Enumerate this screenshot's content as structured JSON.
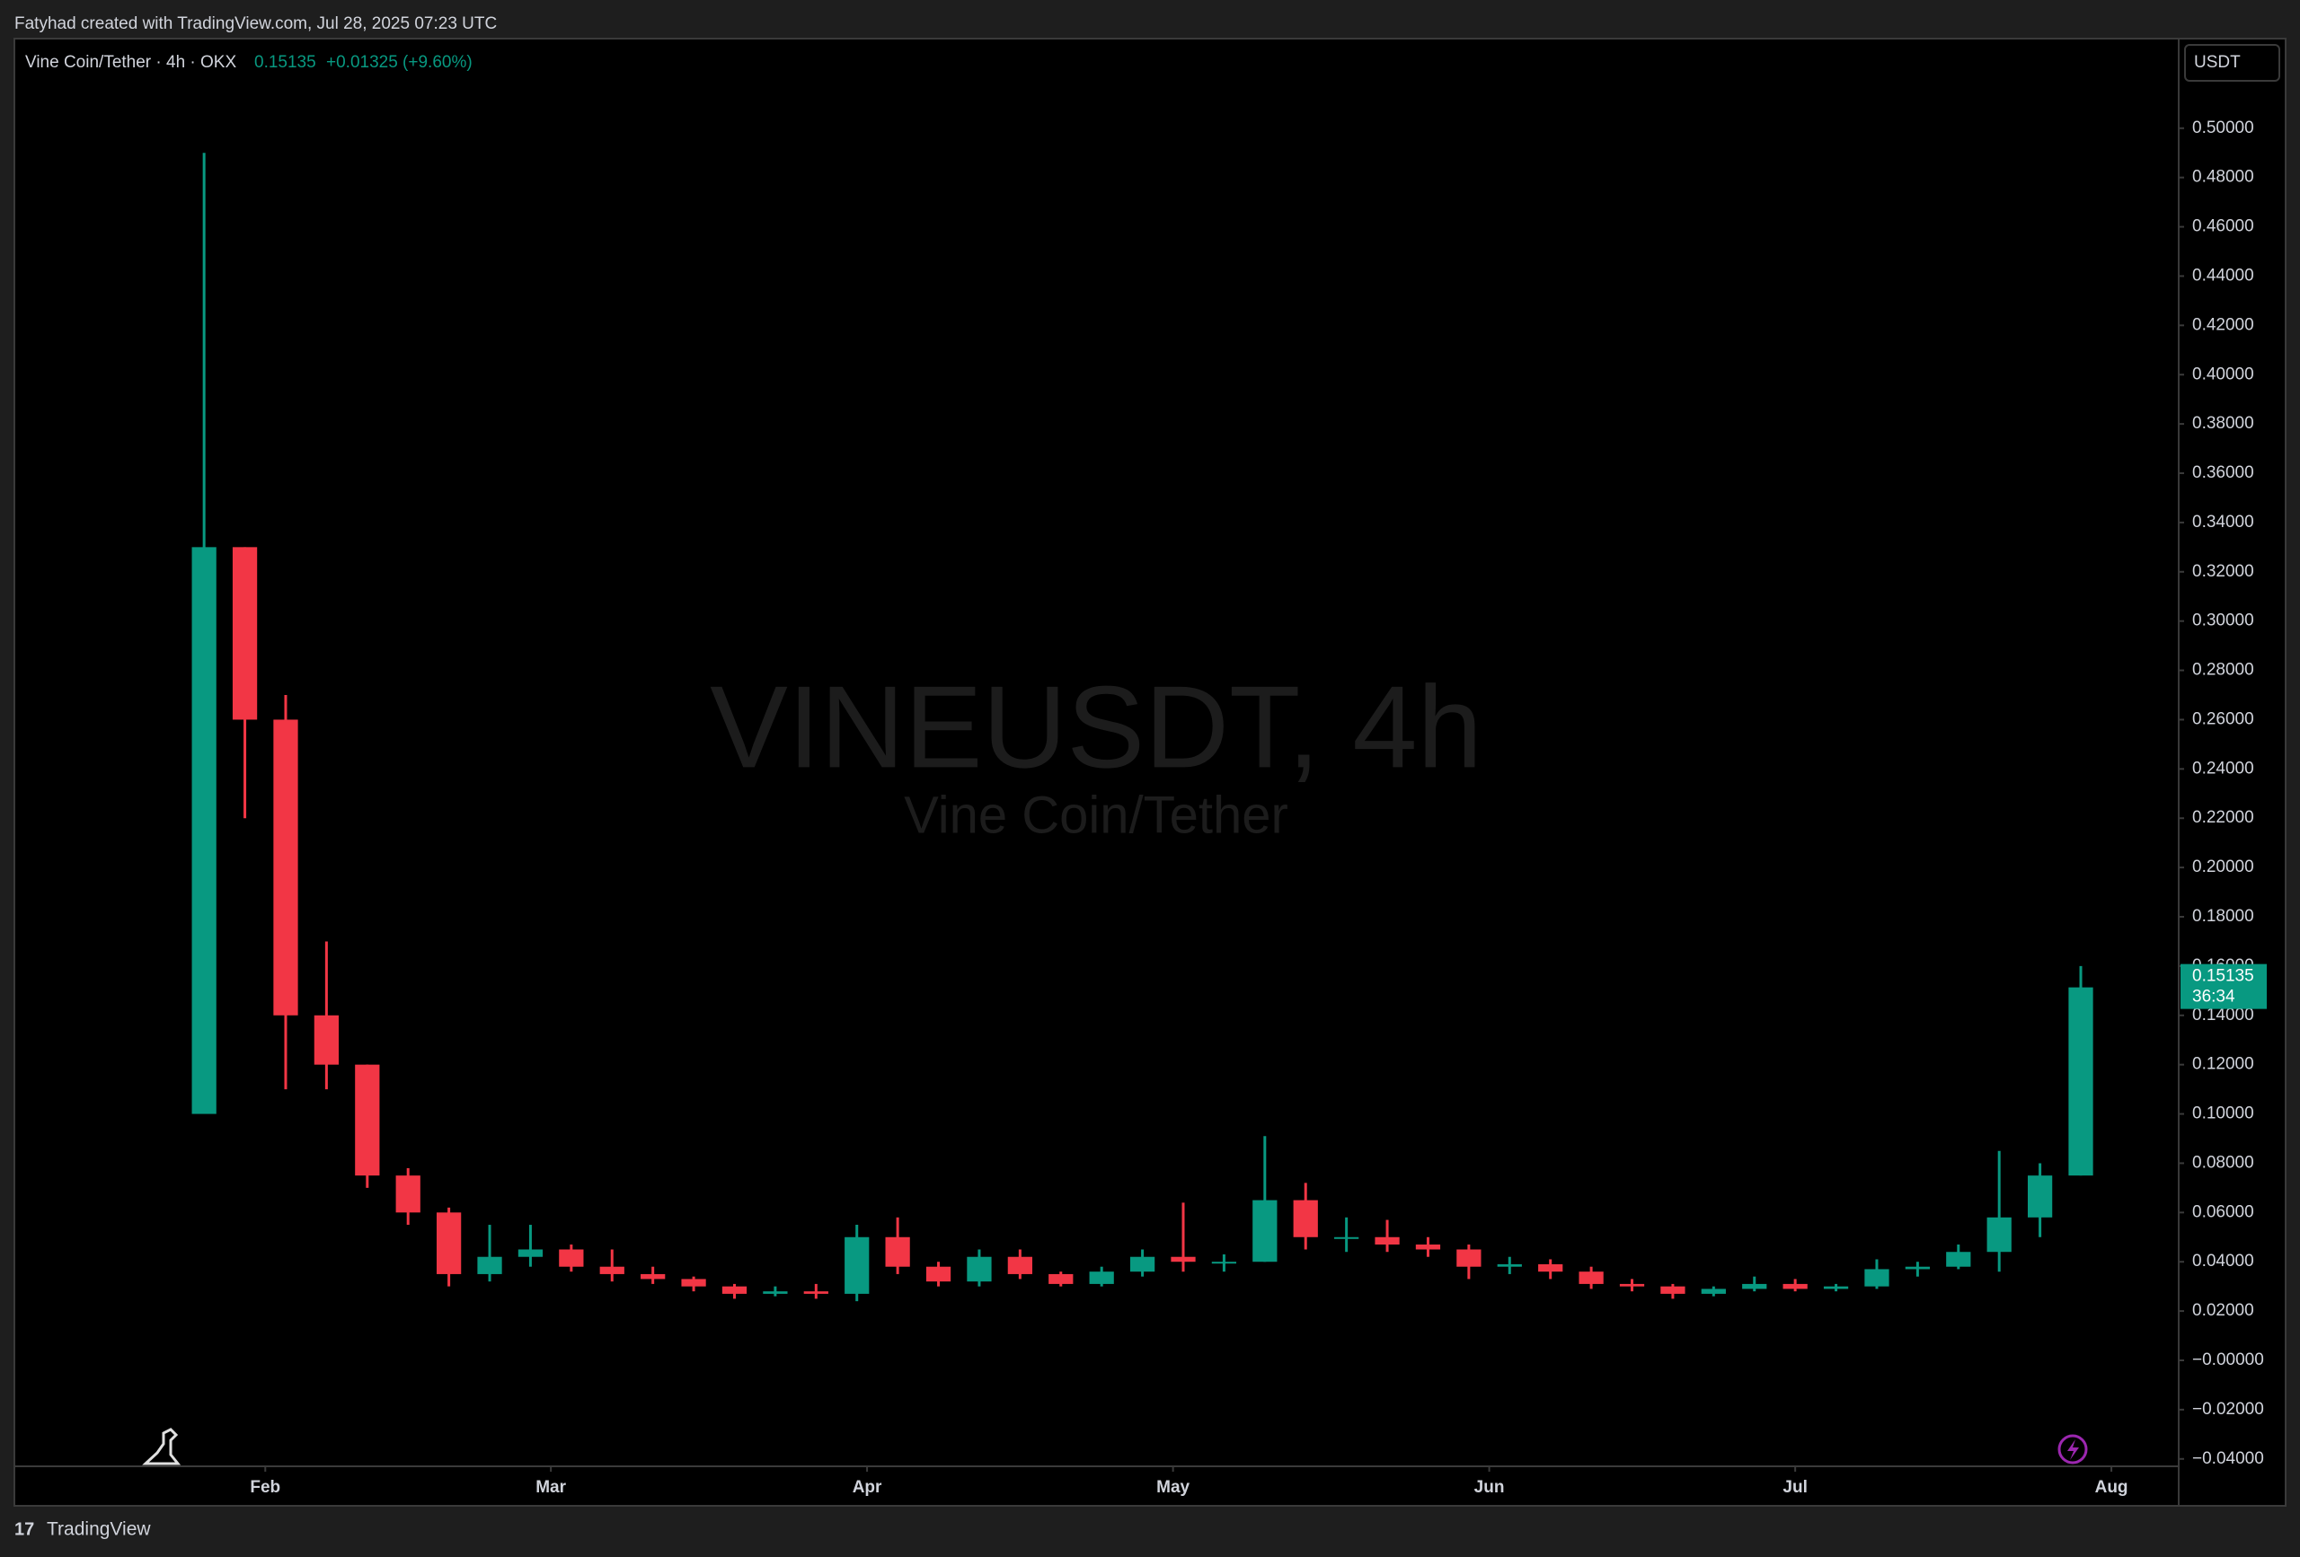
{
  "chart_data": {
    "type": "candlestick",
    "attribution": "Fatyhad created with TradingView.com, Jul 28, 2025 07:23 UTC",
    "symbol_title": "Vine Coin/Tether · 4h · OKX",
    "last_price": 0.15135,
    "change": "+0.01325 (+9.60%)",
    "currency": "USDT",
    "watermark": "VINEUSDT, 4h",
    "watermark_subtitle": "Vine Coin/Tether",
    "countdown": "36:34",
    "brand": "TradingView",
    "up_color": "#089981",
    "down_color": "#f23645",
    "xlim": [
      6.4,
      218.6
    ],
    "xticks": [
      {
        "value": 31,
        "label": "Feb"
      },
      {
        "value": 59,
        "label": "Mar"
      },
      {
        "value": 90,
        "label": "Apr"
      },
      {
        "value": 120,
        "label": "May"
      },
      {
        "value": 151,
        "label": "Jun"
      },
      {
        "value": 181,
        "label": "Jul"
      },
      {
        "value": 212,
        "label": "Aug"
      }
    ],
    "ylim": [
      -0.043,
      0.536
    ],
    "yticks": [
      {
        "value": 0.5,
        "label": "0.50000"
      },
      {
        "value": 0.48,
        "label": "0.48000"
      },
      {
        "value": 0.46,
        "label": "0.46000"
      },
      {
        "value": 0.44,
        "label": "0.44000"
      },
      {
        "value": 0.42,
        "label": "0.42000"
      },
      {
        "value": 0.4,
        "label": "0.40000"
      },
      {
        "value": 0.38,
        "label": "0.38000"
      },
      {
        "value": 0.36,
        "label": "0.36000"
      },
      {
        "value": 0.34,
        "label": "0.34000"
      },
      {
        "value": 0.32,
        "label": "0.32000"
      },
      {
        "value": 0.3,
        "label": "0.30000"
      },
      {
        "value": 0.28,
        "label": "0.28000"
      },
      {
        "value": 0.26,
        "label": "0.26000"
      },
      {
        "value": 0.24,
        "label": "0.24000"
      },
      {
        "value": 0.22,
        "label": "0.22000"
      },
      {
        "value": 0.2,
        "label": "0.20000"
      },
      {
        "value": 0.18,
        "label": "0.18000"
      },
      {
        "value": 0.16,
        "label": "0.16000"
      },
      {
        "value": 0.14,
        "label": "0.14000"
      },
      {
        "value": 0.12,
        "label": "0.12000"
      },
      {
        "value": 0.1,
        "label": "0.10000"
      },
      {
        "value": 0.08,
        "label": "0.08000"
      },
      {
        "value": 0.06,
        "label": "0.06000"
      },
      {
        "value": 0.04,
        "label": "0.04000"
      },
      {
        "value": 0.02,
        "label": "0.02000"
      },
      {
        "value": 0,
        "label": "−0.00000"
      },
      {
        "value": -0.02,
        "label": "−0.02000"
      },
      {
        "value": -0.04,
        "label": "−0.04000"
      }
    ],
    "ohlc": {
      "x": [
        25,
        29,
        33,
        37,
        41,
        45,
        49,
        53,
        57,
        61,
        65,
        69,
        73,
        77,
        81,
        85,
        89,
        93,
        97,
        101,
        105,
        109,
        113,
        117,
        121,
        125,
        129,
        133,
        137,
        141,
        145,
        149,
        153,
        157,
        161,
        165,
        169,
        173,
        177,
        181,
        185,
        189,
        193,
        197,
        201,
        205,
        209
      ],
      "open": [
        0.1,
        0.33,
        0.26,
        0.14,
        0.12,
        0.075,
        0.06,
        0.035,
        0.042,
        0.045,
        0.038,
        0.035,
        0.033,
        0.03,
        0.027,
        0.028,
        0.027,
        0.05,
        0.038,
        0.032,
        0.042,
        0.035,
        0.031,
        0.036,
        0.042,
        0.04,
        0.04,
        0.065,
        0.05,
        0.05,
        0.047,
        0.045,
        0.038,
        0.039,
        0.036,
        0.031,
        0.03,
        0.027,
        0.029,
        0.031,
        0.029,
        0.03,
        0.037,
        0.038,
        0.044,
        0.058,
        0.075
      ],
      "high": [
        0.49,
        0.33,
        0.27,
        0.17,
        0.12,
        0.078,
        0.062,
        0.055,
        0.055,
        0.047,
        0.045,
        0.038,
        0.034,
        0.031,
        0.03,
        0.031,
        0.055,
        0.058,
        0.04,
        0.045,
        0.045,
        0.036,
        0.038,
        0.045,
        0.064,
        0.043,
        0.091,
        0.072,
        0.058,
        0.057,
        0.05,
        0.047,
        0.042,
        0.041,
        0.038,
        0.033,
        0.031,
        0.03,
        0.034,
        0.033,
        0.031,
        0.041,
        0.04,
        0.047,
        0.085,
        0.08,
        0.16
      ],
      "low": [
        0.1,
        0.22,
        0.11,
        0.11,
        0.07,
        0.055,
        0.03,
        0.032,
        0.038,
        0.036,
        0.032,
        0.031,
        0.028,
        0.025,
        0.026,
        0.025,
        0.024,
        0.035,
        0.03,
        0.03,
        0.033,
        0.03,
        0.03,
        0.034,
        0.036,
        0.036,
        0.04,
        0.045,
        0.044,
        0.044,
        0.042,
        0.033,
        0.035,
        0.033,
        0.029,
        0.028,
        0.025,
        0.026,
        0.028,
        0.028,
        0.028,
        0.029,
        0.034,
        0.037,
        0.036,
        0.05,
        0.075
      ],
      "close": [
        0.33,
        0.26,
        0.14,
        0.12,
        0.075,
        0.06,
        0.035,
        0.042,
        0.045,
        0.038,
        0.035,
        0.033,
        0.03,
        0.027,
        0.028,
        0.027,
        0.05,
        0.038,
        0.032,
        0.042,
        0.035,
        0.031,
        0.036,
        0.042,
        0.04,
        0.04,
        0.065,
        0.05,
        0.05,
        0.047,
        0.045,
        0.038,
        0.039,
        0.036,
        0.031,
        0.03,
        0.027,
        0.029,
        0.031,
        0.029,
        0.03,
        0.037,
        0.038,
        0.044,
        0.058,
        0.075,
        0.15135
      ]
    }
  }
}
